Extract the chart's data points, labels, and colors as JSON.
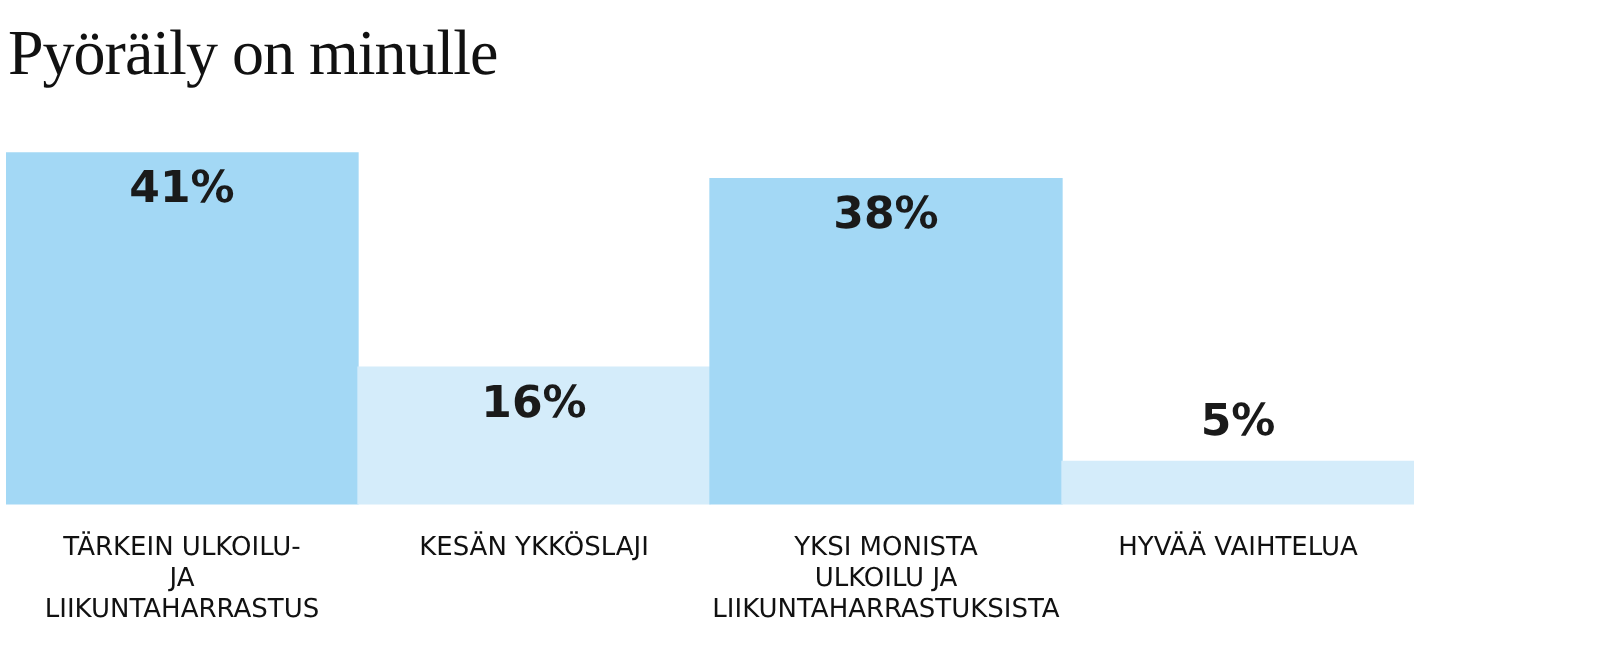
{
  "chart_data": {
    "type": "bar",
    "title": "Pyöräily on minulle",
    "categories": [
      "TÄRKEIN ULKOILU- JA LIIKUNTAHARRASTUS",
      "KESÄN YKKÖSLAJI",
      "YKSI MONISTA ULKOILU JA LIIKUNTAHARRASTUKSISTA",
      "HYVÄÄ VAIHTELUA"
    ],
    "values": [
      41,
      16,
      38,
      5
    ],
    "value_labels": [
      "41%",
      "16%",
      "38%",
      "5%"
    ],
    "colors": [
      "#a3d8f5",
      "#d4ecfa",
      "#a3d8f5",
      "#d4ecfa"
    ],
    "grid": false,
    "legend": false
  }
}
